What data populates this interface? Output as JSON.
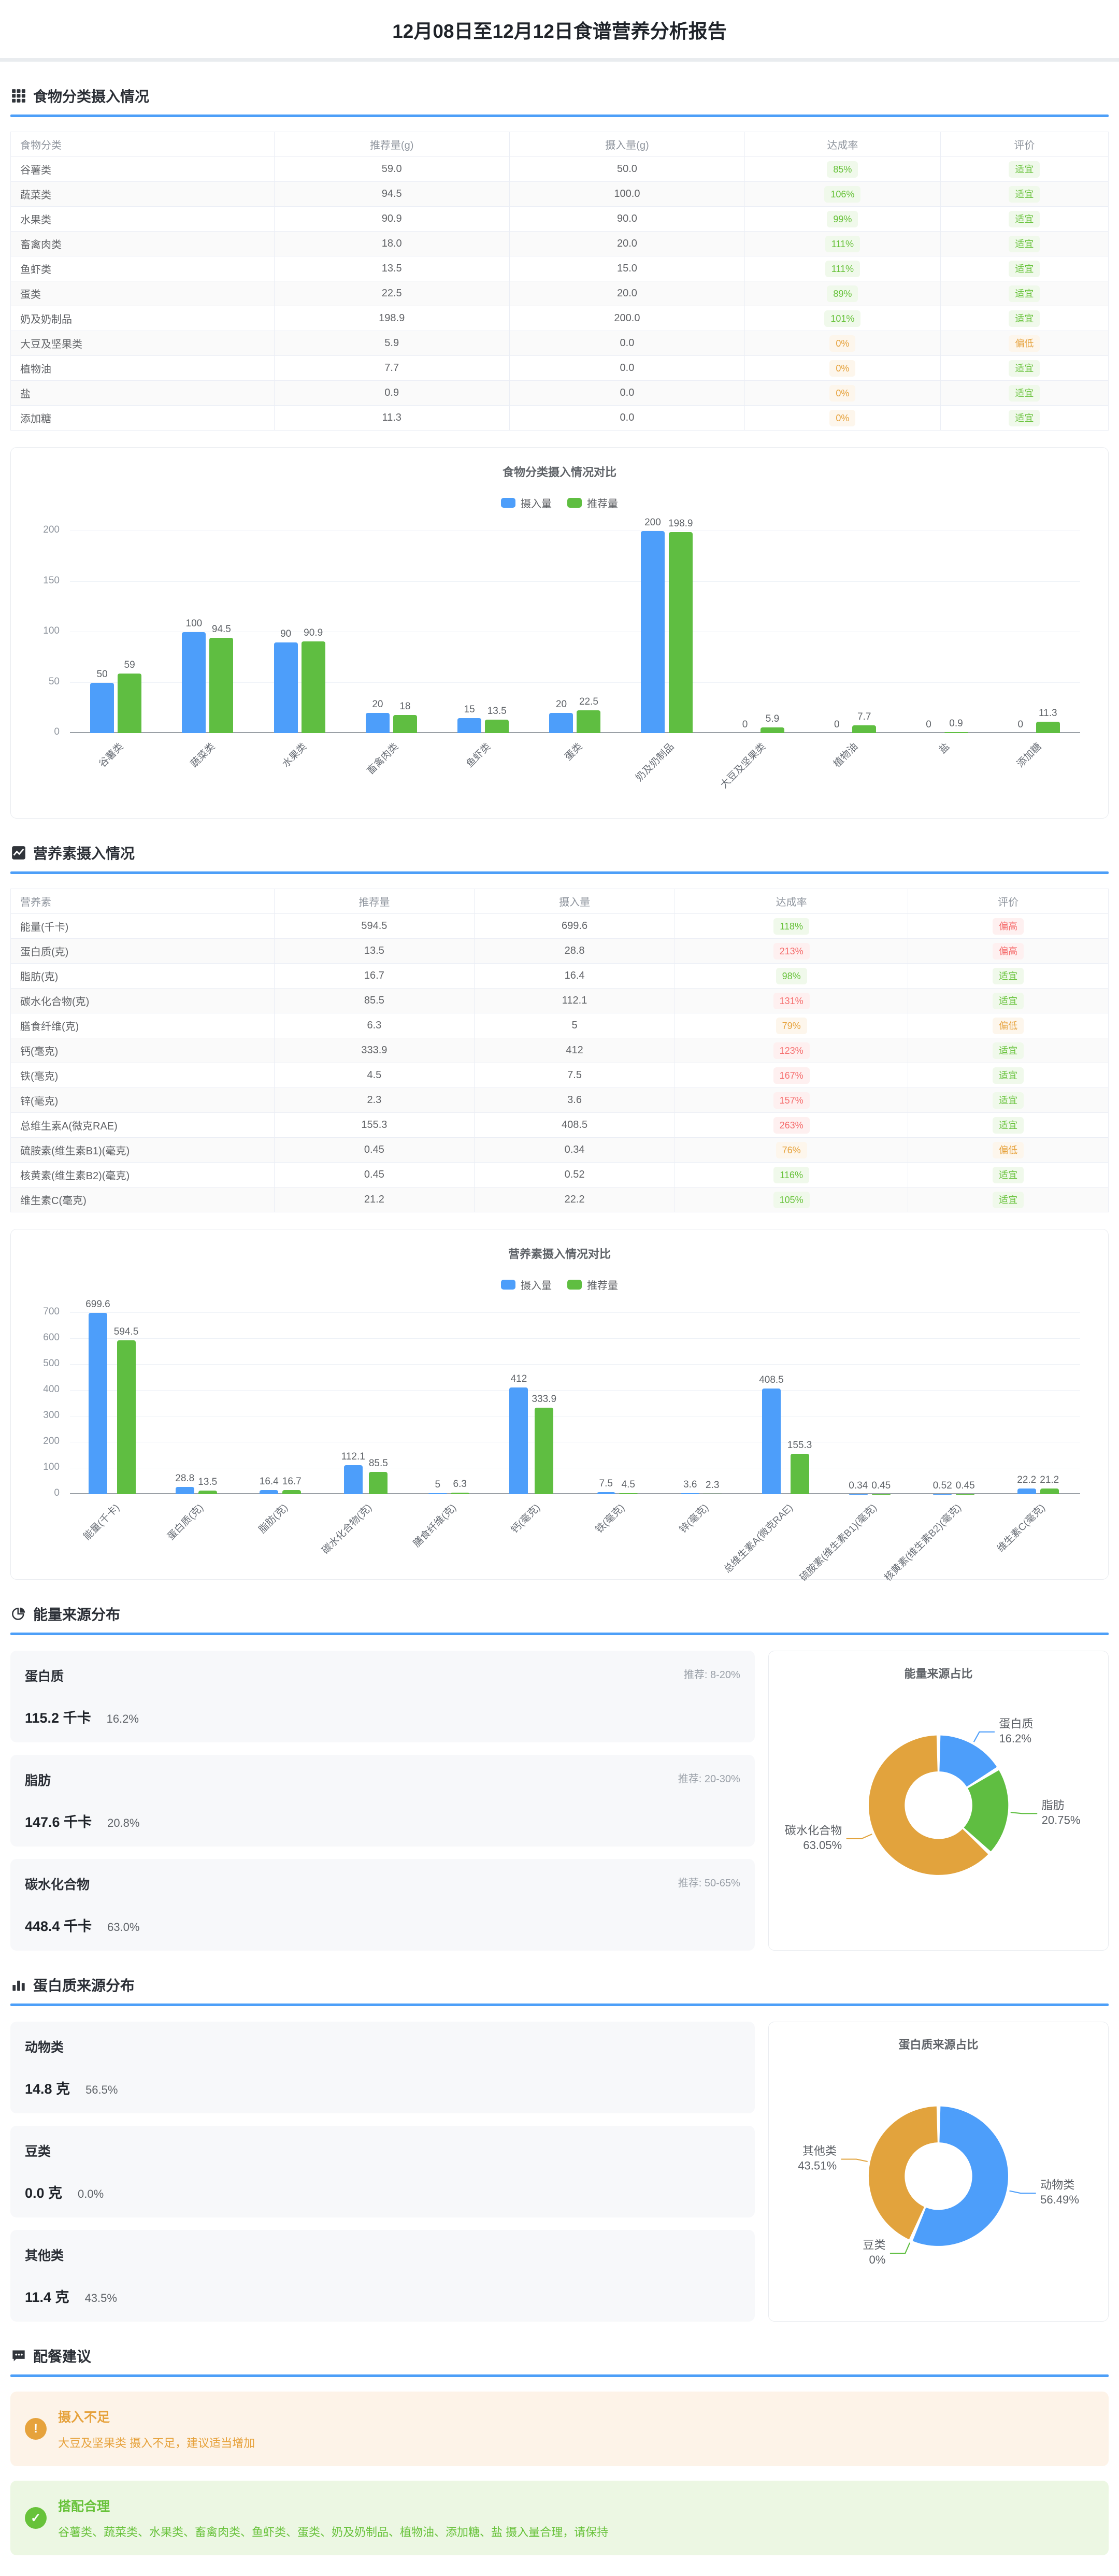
{
  "page": {
    "title": "12月08日至12月12日食谱营养分析报告"
  },
  "colors": {
    "accent_blue": "#4d9ff8",
    "series_intake_blue": "#4d9efa",
    "series_recommend_green": "#5fbe41",
    "pie_orange": "#e2a33d",
    "badge_green": "#67c23a",
    "badge_orange": "#e6a23c",
    "badge_red": "#f56c6c"
  },
  "sections": {
    "food": {
      "title": "食物分类摄入情况",
      "icon": "grid-icon"
    },
    "nutrient": {
      "title": "营养素摄入情况",
      "icon": "trend-chart-icon"
    },
    "energy": {
      "title": "能量来源分布",
      "icon": "pie-chart-icon"
    },
    "protein": {
      "title": "蛋白质来源分布",
      "icon": "bar-chart-icon"
    },
    "advice": {
      "title": "配餐建议",
      "icon": "comment-icon"
    }
  },
  "food_table": {
    "headers": [
      "食物分类",
      "推荐量(g)",
      "摄入量(g)",
      "达成率",
      "评价"
    ],
    "rows": [
      {
        "name": "谷薯类",
        "rec": "59.0",
        "intake": "50.0",
        "rate": "85%",
        "rate_level": "green",
        "eval": "适宜",
        "eval_level": "green"
      },
      {
        "name": "蔬菜类",
        "rec": "94.5",
        "intake": "100.0",
        "rate": "106%",
        "rate_level": "green",
        "eval": "适宜",
        "eval_level": "green"
      },
      {
        "name": "水果类",
        "rec": "90.9",
        "intake": "90.0",
        "rate": "99%",
        "rate_level": "green",
        "eval": "适宜",
        "eval_level": "green"
      },
      {
        "name": "畜禽肉类",
        "rec": "18.0",
        "intake": "20.0",
        "rate": "111%",
        "rate_level": "green",
        "eval": "适宜",
        "eval_level": "green"
      },
      {
        "name": "鱼虾类",
        "rec": "13.5",
        "intake": "15.0",
        "rate": "111%",
        "rate_level": "green",
        "eval": "适宜",
        "eval_level": "green"
      },
      {
        "name": "蛋类",
        "rec": "22.5",
        "intake": "20.0",
        "rate": "89%",
        "rate_level": "green",
        "eval": "适宜",
        "eval_level": "green"
      },
      {
        "name": "奶及奶制品",
        "rec": "198.9",
        "intake": "200.0",
        "rate": "101%",
        "rate_level": "green",
        "eval": "适宜",
        "eval_level": "green"
      },
      {
        "name": "大豆及坚果类",
        "rec": "5.9",
        "intake": "0.0",
        "rate": "0%",
        "rate_level": "orange",
        "eval": "偏低",
        "eval_level": "orange"
      },
      {
        "name": "植物油",
        "rec": "7.7",
        "intake": "0.0",
        "rate": "0%",
        "rate_level": "orange",
        "eval": "适宜",
        "eval_level": "green"
      },
      {
        "name": "盐",
        "rec": "0.9",
        "intake": "0.0",
        "rate": "0%",
        "rate_level": "orange",
        "eval": "适宜",
        "eval_level": "green"
      },
      {
        "name": "添加糖",
        "rec": "11.3",
        "intake": "0.0",
        "rate": "0%",
        "rate_level": "orange",
        "eval": "适宜",
        "eval_level": "green"
      }
    ]
  },
  "nutrient_table": {
    "headers": [
      "营养素",
      "推荐量",
      "摄入量",
      "达成率",
      "评价"
    ],
    "rows": [
      {
        "name": "能量(千卡)",
        "rec": "594.5",
        "intake": "699.6",
        "rate": "118%",
        "rate_level": "green",
        "eval": "偏高",
        "eval_level": "red"
      },
      {
        "name": "蛋白质(克)",
        "rec": "13.5",
        "intake": "28.8",
        "rate": "213%",
        "rate_level": "red",
        "eval": "偏高",
        "eval_level": "red"
      },
      {
        "name": "脂肪(克)",
        "rec": "16.7",
        "intake": "16.4",
        "rate": "98%",
        "rate_level": "green",
        "eval": "适宜",
        "eval_level": "green"
      },
      {
        "name": "碳水化合物(克)",
        "rec": "85.5",
        "intake": "112.1",
        "rate": "131%",
        "rate_level": "red",
        "eval": "适宜",
        "eval_level": "green"
      },
      {
        "name": "膳食纤维(克)",
        "rec": "6.3",
        "intake": "5",
        "rate": "79%",
        "rate_level": "orange",
        "eval": "偏低",
        "eval_level": "orange"
      },
      {
        "name": "钙(毫克)",
        "rec": "333.9",
        "intake": "412",
        "rate": "123%",
        "rate_level": "red",
        "eval": "适宜",
        "eval_level": "green"
      },
      {
        "name": "铁(毫克)",
        "rec": "4.5",
        "intake": "7.5",
        "rate": "167%",
        "rate_level": "red",
        "eval": "适宜",
        "eval_level": "green"
      },
      {
        "name": "锌(毫克)",
        "rec": "2.3",
        "intake": "3.6",
        "rate": "157%",
        "rate_level": "red",
        "eval": "适宜",
        "eval_level": "green"
      },
      {
        "name": "总维生素A(微克RAE)",
        "rec": "155.3",
        "intake": "408.5",
        "rate": "263%",
        "rate_level": "red",
        "eval": "适宜",
        "eval_level": "green"
      },
      {
        "name": "硫胺素(维生素B1)(毫克)",
        "rec": "0.45",
        "intake": "0.34",
        "rate": "76%",
        "rate_level": "orange",
        "eval": "偏低",
        "eval_level": "orange"
      },
      {
        "name": "核黄素(维生素B2)(毫克)",
        "rec": "0.45",
        "intake": "0.52",
        "rate": "116%",
        "rate_level": "green",
        "eval": "适宜",
        "eval_level": "green"
      },
      {
        "name": "维生素C(毫克)",
        "rec": "21.2",
        "intake": "22.2",
        "rate": "105%",
        "rate_level": "green",
        "eval": "适宜",
        "eval_level": "green"
      }
    ]
  },
  "energy_cards": [
    {
      "name": "蛋白质",
      "value": "115.2 千卡",
      "pct": "16.2%",
      "recommend": "推荐: 8-20%"
    },
    {
      "name": "脂肪",
      "value": "147.6 千卡",
      "pct": "20.8%",
      "recommend": "推荐: 20-30%"
    },
    {
      "name": "碳水化合物",
      "value": "448.4 千卡",
      "pct": "63.0%",
      "recommend": "推荐: 50-65%"
    }
  ],
  "protein_cards": [
    {
      "name": "动物类",
      "value": "14.8 克",
      "pct": "56.5%"
    },
    {
      "name": "豆类",
      "value": "0.0 克",
      "pct": "0.0%"
    },
    {
      "name": "其他类",
      "value": "11.4 克",
      "pct": "43.5%"
    }
  ],
  "advice_items": [
    {
      "level": "warning",
      "icon": "exclamation-icon",
      "glyph": "!",
      "title": "摄入不足",
      "text": "大豆及坚果类 摄入不足，建议适当增加"
    },
    {
      "level": "success",
      "icon": "check-icon",
      "glyph": "✓",
      "title": "搭配合理",
      "text": "谷薯类、蔬菜类、水果类、畜禽肉类、鱼虾类、蛋类、奶及奶制品、植物油、添加糖、盐 摄入量合理，请保持"
    }
  ],
  "chart_data": [
    {
      "id": "food_compare",
      "type": "bar",
      "title": "食物分类摄入情况对比",
      "legend": [
        "摄入量",
        "推荐量"
      ],
      "legend_position": "top",
      "grid": true,
      "categories": [
        "谷薯类",
        "蔬菜类",
        "水果类",
        "畜禽肉类",
        "鱼虾类",
        "蛋类",
        "奶及奶制品",
        "大豆及坚果类",
        "植物油",
        "盐",
        "添加糖"
      ],
      "series": [
        {
          "name": "摄入量",
          "color": "#4d9efa",
          "values": [
            50,
            100,
            90,
            20,
            15,
            20,
            200,
            0,
            0,
            0,
            0
          ]
        },
        {
          "name": "推荐量",
          "color": "#5fbe41",
          "values": [
            59,
            94.5,
            90.9,
            18,
            13.5,
            22.5,
            198.9,
            5.9,
            7.7,
            0.9,
            11.3
          ]
        }
      ],
      "yticks": [
        0,
        50,
        100,
        150,
        200
      ],
      "ylim": [
        0,
        200
      ]
    },
    {
      "id": "nutrient_compare",
      "type": "bar",
      "title": "营养素摄入情况对比",
      "legend": [
        "摄入量",
        "推荐量"
      ],
      "legend_position": "top",
      "grid": true,
      "categories": [
        "能量(千卡)",
        "蛋白质(克)",
        "脂肪(克)",
        "碳水化合物(克)",
        "膳食纤维(克)",
        "钙(毫克)",
        "铁(毫克)",
        "锌(毫克)",
        "总维生素A(微克RAE)",
        "硫胺素(维生素B1)(毫克)",
        "核黄素(维生素B2)(毫克)",
        "维生素C(毫克)"
      ],
      "series": [
        {
          "name": "摄入量",
          "color": "#4d9efa",
          "values": [
            699.6,
            28.8,
            16.4,
            112.1,
            5,
            412,
            7.5,
            3.6,
            408.5,
            0.34,
            0.52,
            22.2
          ]
        },
        {
          "name": "推荐量",
          "color": "#5fbe41",
          "values": [
            594.5,
            13.5,
            16.7,
            85.5,
            6.3,
            333.9,
            4.5,
            2.3,
            155.3,
            0.45,
            0.45,
            21.2
          ]
        }
      ],
      "yticks": [
        0,
        100,
        200,
        300,
        400,
        500,
        600,
        700
      ],
      "ylim": [
        0,
        700
      ]
    },
    {
      "id": "energy_pie",
      "type": "pie",
      "title": "能量来源占比",
      "slices": [
        {
          "name": "蛋白质",
          "pct": 16.2,
          "label": "16.2%",
          "color": "#4d9efa"
        },
        {
          "name": "脂肪",
          "pct": 20.75,
          "label": "20.75%",
          "color": "#5fbe41"
        },
        {
          "name": "碳水化合物",
          "pct": 63.05,
          "label": "63.05%",
          "color": "#e2a33d"
        }
      ]
    },
    {
      "id": "protein_pie",
      "type": "pie",
      "title": "蛋白质来源占比",
      "slices": [
        {
          "name": "动物类",
          "pct": 56.49,
          "label": "56.49%",
          "color": "#4d9efa"
        },
        {
          "name": "豆类",
          "pct": 0,
          "label": "0%",
          "color": "#5fbe41"
        },
        {
          "name": "其他类",
          "pct": 43.51,
          "label": "43.51%",
          "color": "#e2a33d"
        }
      ]
    }
  ]
}
